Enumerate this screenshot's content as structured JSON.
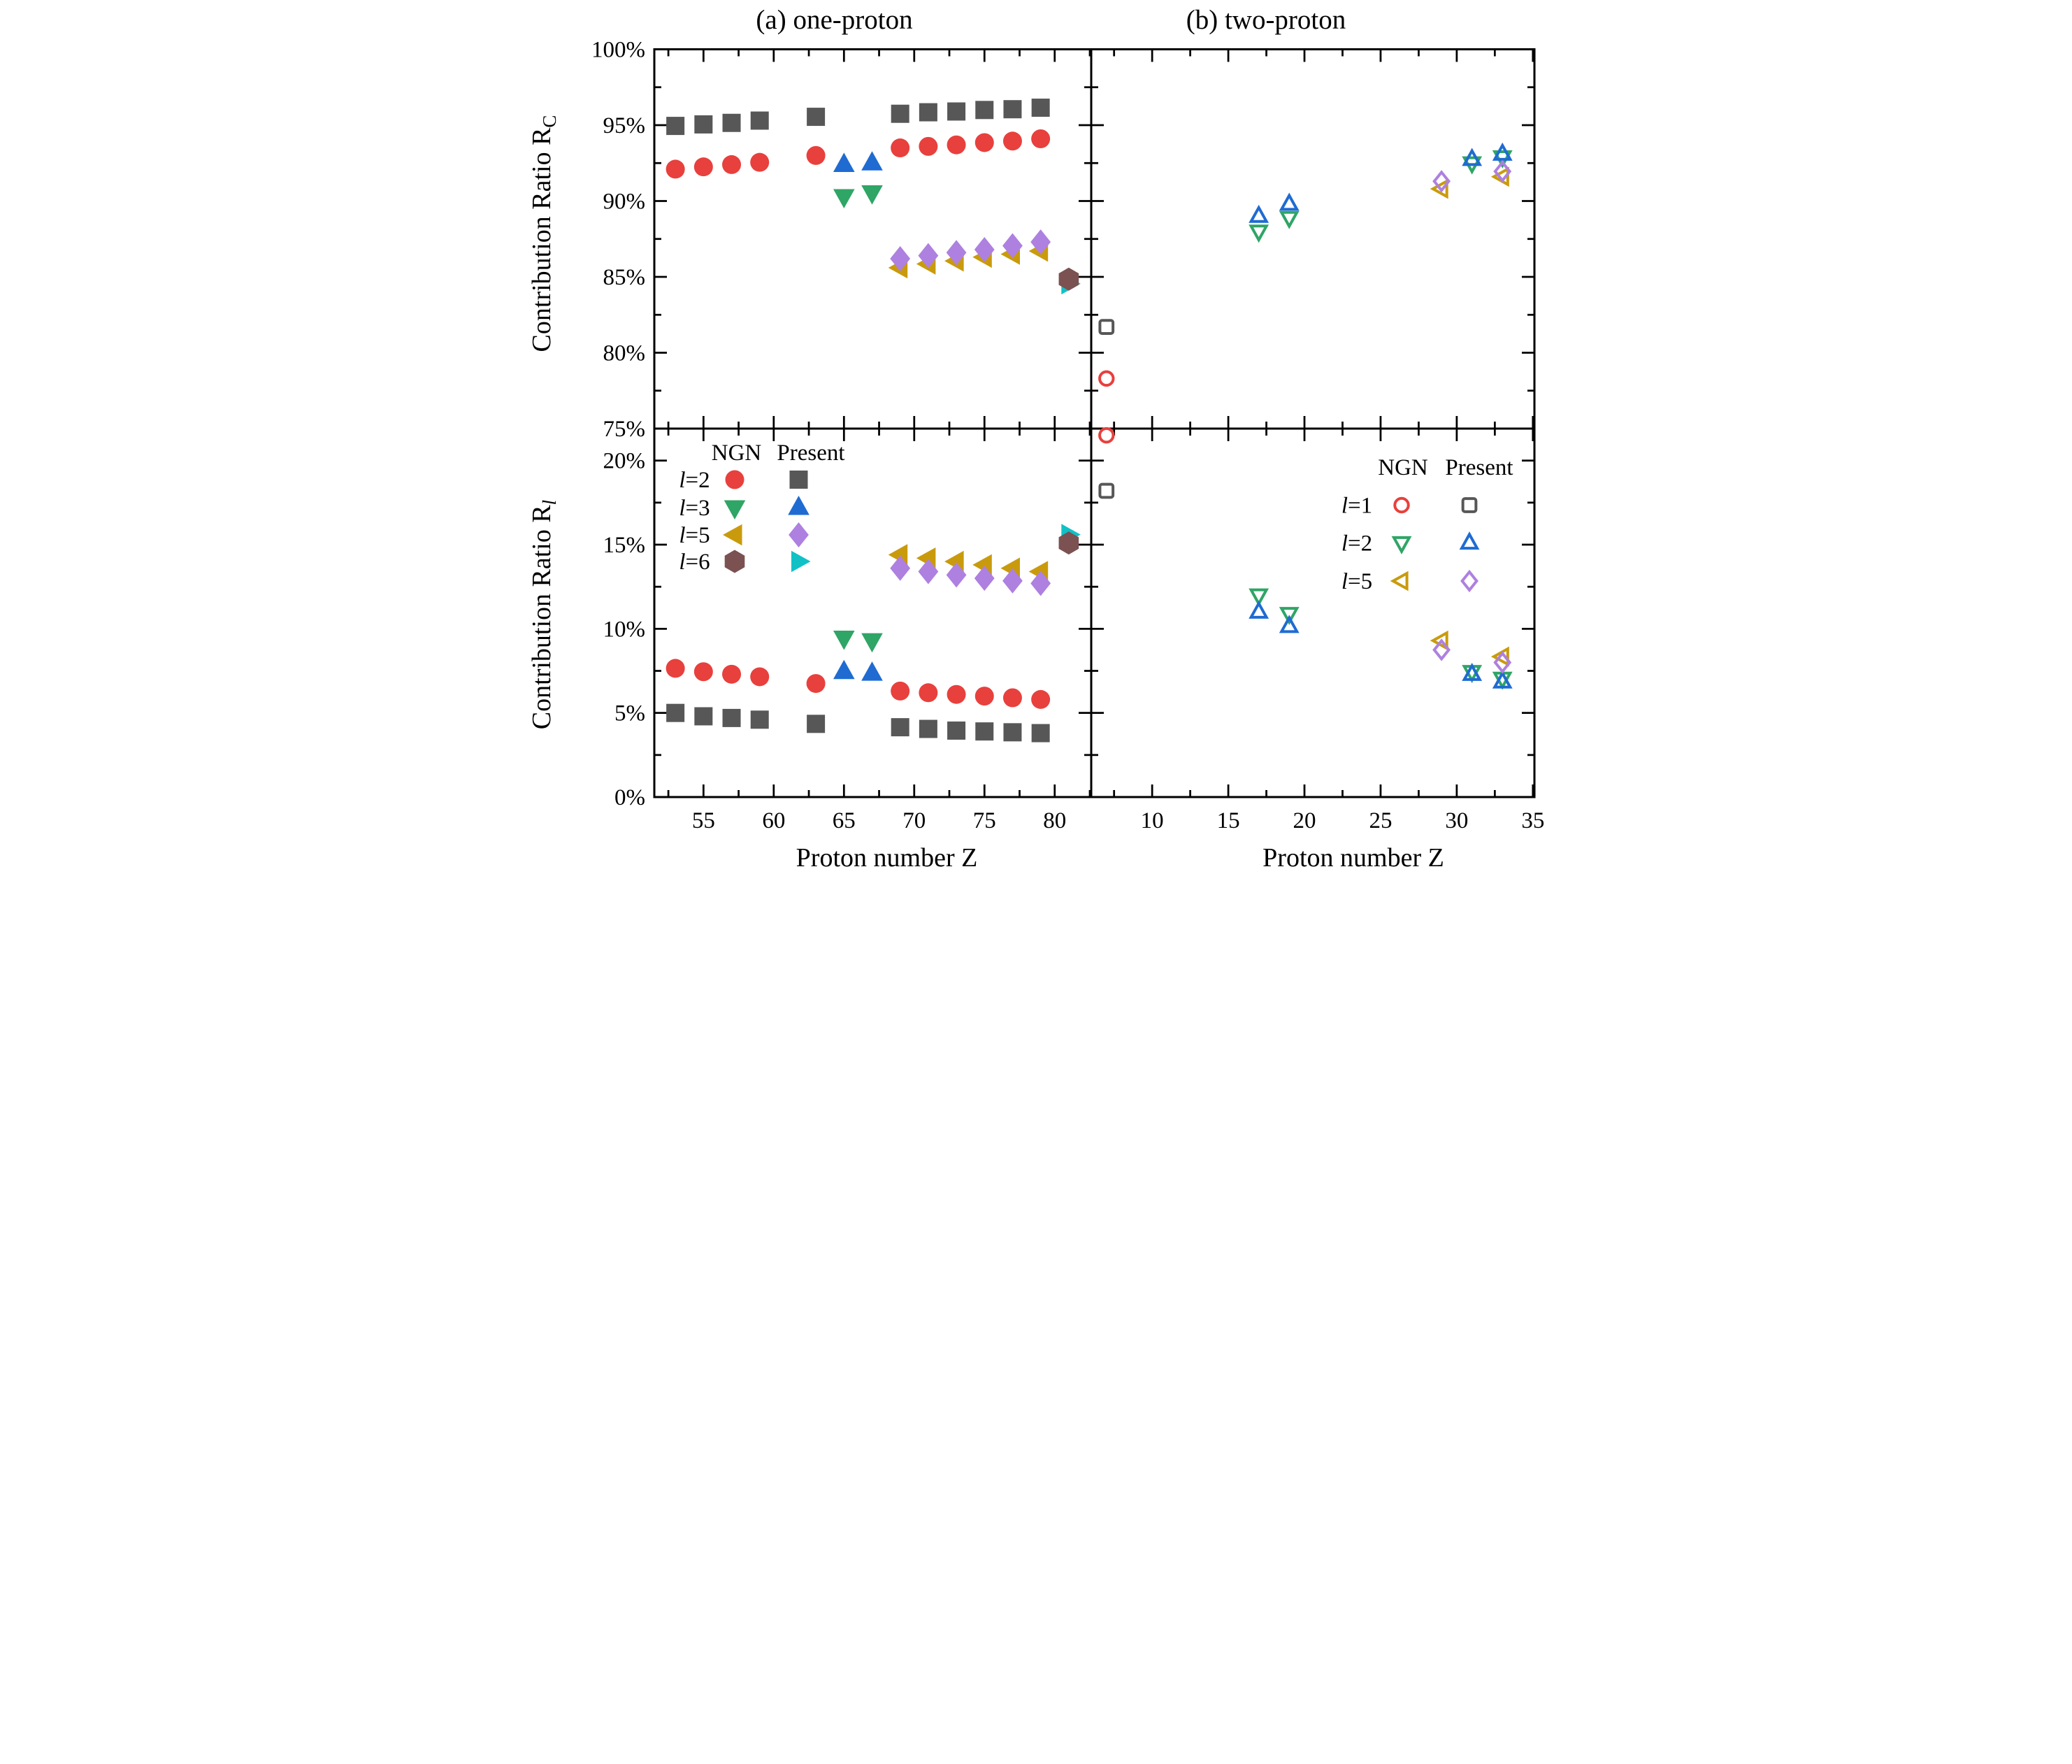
{
  "figure": {
    "background": "#ffffff",
    "panel_a_title": "(a) one-proton",
    "panel_b_title": "(b) two-proton",
    "x_axis_title": "Proton number Z",
    "y_axis_title_top": {
      "main": "Contribution Ratio R",
      "sub": "C",
      "sub_italic": false
    },
    "y_axis_title_bottom": {
      "main": "Contribution Ratio R",
      "sub": "l",
      "sub_italic": true
    }
  },
  "colors": {
    "red": "#e8403d",
    "grey": "#575757",
    "green": "#2fa566",
    "blue": "#1f6bd2",
    "gold": "#c99b0c",
    "purple": "#ae80e0",
    "brown": "#7b5151",
    "cyan": "#12c1c6",
    "axis": "#000000"
  },
  "chart_data": [
    {
      "id": "a-top",
      "type": "scatter",
      "title": "(a) one-proton",
      "xlabel": "Proton number Z",
      "ylabel": "Contribution Ratio R_C",
      "xlim": [
        51.5,
        82.6
      ],
      "ylim": [
        75,
        100
      ],
      "x_major_ticks": [
        55,
        60,
        65,
        70,
        75,
        80
      ],
      "x_minor_ticks": [
        52.5,
        57.5,
        62.5,
        67.5,
        72.5,
        77.5,
        82.5
      ],
      "y_major_ticks": [
        75,
        80,
        85,
        90,
        95,
        100
      ],
      "y_minor_ticks": [
        77.5,
        82.5,
        87.5,
        92.5,
        97.5
      ],
      "y_tick_labels": [
        "75%",
        "80%",
        "85%",
        "90%",
        "95%",
        "100%"
      ],
      "x_tick_labels": [],
      "grid": false,
      "series": [
        {
          "name": "l=2 NGN",
          "marker": "circle",
          "color": "red",
          "open": false,
          "points": [
            [
              53,
              92.1
            ],
            [
              55,
              92.25
            ],
            [
              57,
              92.4
            ],
            [
              59,
              92.55
            ],
            [
              63,
              93.0
            ],
            [
              69,
              93.5
            ],
            [
              71,
              93.6
            ],
            [
              73,
              93.7
            ],
            [
              75,
              93.85
            ],
            [
              77,
              93.95
            ],
            [
              79,
              94.1
            ]
          ]
        },
        {
          "name": "l=2 Present",
          "marker": "square",
          "color": "grey",
          "open": false,
          "points": [
            [
              53,
              94.95
            ],
            [
              55,
              95.05
            ],
            [
              57,
              95.15
            ],
            [
              59,
              95.3
            ],
            [
              63,
              95.55
            ],
            [
              69,
              95.75
            ],
            [
              71,
              95.85
            ],
            [
              73,
              95.9
            ],
            [
              75,
              96.0
            ],
            [
              77,
              96.05
            ],
            [
              79,
              96.15
            ]
          ]
        },
        {
          "name": "l=3 NGN",
          "marker": "triangle-down",
          "color": "green",
          "open": false,
          "points": [
            [
              65,
              90.3
            ],
            [
              67,
              90.55
            ]
          ]
        },
        {
          "name": "l=3 Present",
          "marker": "triangle-up",
          "color": "blue",
          "open": false,
          "points": [
            [
              65,
              92.4
            ],
            [
              67,
              92.5
            ]
          ]
        },
        {
          "name": "l=5 NGN",
          "marker": "triangle-left",
          "color": "gold",
          "open": false,
          "points": [
            [
              69,
              85.6
            ],
            [
              71,
              85.85
            ],
            [
              73,
              86.05
            ],
            [
              75,
              86.3
            ],
            [
              77,
              86.5
            ],
            [
              79,
              86.7
            ]
          ]
        },
        {
          "name": "l=5 Present",
          "marker": "diamond",
          "color": "purple",
          "open": false,
          "points": [
            [
              69,
              86.2
            ],
            [
              71,
              86.4
            ],
            [
              73,
              86.6
            ],
            [
              75,
              86.8
            ],
            [
              77,
              87.05
            ],
            [
              79,
              87.3
            ]
          ]
        },
        {
          "name": "l=6 Present",
          "marker": "triangle-right",
          "color": "cyan",
          "open": false,
          "points": [
            [
              81,
              84.55
            ]
          ]
        },
        {
          "name": "l=6 NGN",
          "marker": "hexagon",
          "color": "brown",
          "open": false,
          "points": [
            [
              81,
              84.85
            ]
          ]
        }
      ]
    },
    {
      "id": "a-bot",
      "type": "scatter",
      "title": "(a) one-proton",
      "xlabel": "Proton number Z",
      "ylabel": "Contribution Ratio R_l",
      "xlim": [
        51.5,
        82.6
      ],
      "ylim": [
        0,
        21.9
      ],
      "x_major_ticks": [
        55,
        60,
        65,
        70,
        75,
        80
      ],
      "x_minor_ticks": [
        52.5,
        57.5,
        62.5,
        67.5,
        72.5,
        77.5,
        82.5
      ],
      "y_major_ticks": [
        0,
        5,
        10,
        15,
        20
      ],
      "y_minor_ticks": [
        2.5,
        7.5,
        12.5,
        17.5
      ],
      "y_tick_labels": [
        "0%",
        "5%",
        "10%",
        "15%",
        "20%"
      ],
      "x_tick_labels": [
        "55",
        "60",
        "65",
        "70",
        "75",
        "80"
      ],
      "grid": false,
      "series": [
        {
          "name": "l=2 NGN",
          "marker": "circle",
          "color": "red",
          "open": false,
          "points": [
            [
              53,
              7.65
            ],
            [
              55,
              7.45
            ],
            [
              57,
              7.3
            ],
            [
              59,
              7.15
            ],
            [
              63,
              6.75
            ],
            [
              69,
              6.3
            ],
            [
              71,
              6.2
            ],
            [
              73,
              6.1
            ],
            [
              75,
              6.0
            ],
            [
              77,
              5.9
            ],
            [
              79,
              5.8
            ]
          ]
        },
        {
          "name": "l=2 Present",
          "marker": "square",
          "color": "grey",
          "open": false,
          "points": [
            [
              53,
              5.0
            ],
            [
              55,
              4.8
            ],
            [
              57,
              4.7
            ],
            [
              59,
              4.6
            ],
            [
              63,
              4.35
            ],
            [
              69,
              4.15
            ],
            [
              71,
              4.05
            ],
            [
              73,
              3.95
            ],
            [
              75,
              3.9
            ],
            [
              77,
              3.85
            ],
            [
              79,
              3.8
            ]
          ]
        },
        {
          "name": "l=3 NGN",
          "marker": "triangle-down",
          "color": "green",
          "open": false,
          "points": [
            [
              65,
              9.45
            ],
            [
              67,
              9.3
            ]
          ]
        },
        {
          "name": "l=3 Present",
          "marker": "triangle-up",
          "color": "blue",
          "open": false,
          "points": [
            [
              65,
              7.45
            ],
            [
              67,
              7.35
            ]
          ]
        },
        {
          "name": "l=5 NGN",
          "marker": "triangle-left",
          "color": "gold",
          "open": false,
          "points": [
            [
              69,
              14.4
            ],
            [
              71,
              14.2
            ],
            [
              73,
              14.0
            ],
            [
              75,
              13.8
            ],
            [
              77,
              13.6
            ],
            [
              79,
              13.4
            ]
          ]
        },
        {
          "name": "l=5 Present",
          "marker": "diamond",
          "color": "purple",
          "open": false,
          "points": [
            [
              69,
              13.6
            ],
            [
              71,
              13.4
            ],
            [
              73,
              13.2
            ],
            [
              75,
              13.0
            ],
            [
              77,
              12.85
            ],
            [
              79,
              12.7
            ]
          ]
        },
        {
          "name": "l=6 Present",
          "marker": "triangle-right",
          "color": "cyan",
          "open": false,
          "points": [
            [
              81,
              15.6
            ]
          ]
        },
        {
          "name": "l=6 NGN",
          "marker": "hexagon",
          "color": "brown",
          "open": false,
          "points": [
            [
              81,
              15.1
            ]
          ]
        }
      ]
    },
    {
      "id": "b-top",
      "type": "scatter",
      "title": "(b) two-proton",
      "xlabel": "Proton number Z",
      "ylabel": "Contribution Ratio R_C",
      "xlim": [
        6.0,
        35.1
      ],
      "ylim": [
        75,
        100
      ],
      "x_major_ticks": [
        10,
        15,
        20,
        25,
        30,
        35
      ],
      "x_minor_ticks": [
        7.5,
        12.5,
        17.5,
        22.5,
        27.5,
        32.5
      ],
      "y_major_ticks": [
        75,
        80,
        85,
        90,
        95,
        100
      ],
      "y_minor_ticks": [
        77.5,
        82.5,
        87.5,
        92.5,
        97.5
      ],
      "y_tick_labels": [],
      "x_tick_labels": [],
      "grid": false,
      "series": [
        {
          "name": "l=1 NGN",
          "marker": "circle",
          "color": "red",
          "open": true,
          "points": [
            [
              7,
              78.3
            ]
          ]
        },
        {
          "name": "l=1 Present",
          "marker": "square",
          "color": "grey",
          "open": true,
          "points": [
            [
              7,
              81.7
            ]
          ]
        },
        {
          "name": "l=2 NGN",
          "marker": "triangle-down",
          "color": "green",
          "open": true,
          "points": [
            [
              17,
              88.0
            ],
            [
              19,
              88.9
            ],
            [
              31,
              92.5
            ],
            [
              33,
              92.9
            ]
          ]
        },
        {
          "name": "l=2 Present",
          "marker": "triangle-up",
          "color": "blue",
          "open": true,
          "points": [
            [
              17,
              89.0
            ],
            [
              19,
              89.8
            ],
            [
              31,
              92.75
            ],
            [
              33,
              93.1
            ]
          ]
        },
        {
          "name": "l=5 NGN",
          "marker": "triangle-left",
          "color": "gold",
          "open": true,
          "points": [
            [
              29,
              90.8
            ],
            [
              33,
              91.6
            ]
          ]
        },
        {
          "name": "l=5 Present",
          "marker": "diamond",
          "color": "purple",
          "open": true,
          "points": [
            [
              29,
              91.3
            ],
            [
              33,
              91.95
            ]
          ]
        }
      ]
    },
    {
      "id": "b-bot",
      "type": "scatter",
      "title": "(b) two-proton",
      "xlabel": "Proton number Z",
      "ylabel": "Contribution Ratio R_l",
      "xlim": [
        6.0,
        35.1
      ],
      "ylim": [
        0,
        21.9
      ],
      "x_major_ticks": [
        10,
        15,
        20,
        25,
        30,
        35
      ],
      "x_minor_ticks": [
        7.5,
        12.5,
        17.5,
        22.5,
        27.5,
        32.5
      ],
      "y_major_ticks": [
        0,
        5,
        10,
        15,
        20
      ],
      "y_minor_ticks": [
        2.5,
        7.5,
        12.5,
        17.5
      ],
      "y_tick_labels": [],
      "x_tick_labels": [
        "10",
        "15",
        "20",
        "25",
        "30",
        "35"
      ],
      "grid": false,
      "series": [
        {
          "name": "l=1 NGN",
          "marker": "circle",
          "color": "red",
          "open": true,
          "points": [
            [
              7,
              21.5
            ]
          ]
        },
        {
          "name": "l=1 Present",
          "marker": "square",
          "color": "grey",
          "open": true,
          "points": [
            [
              7,
              18.2
            ]
          ]
        },
        {
          "name": "l=2 NGN",
          "marker": "triangle-down",
          "color": "green",
          "open": true,
          "points": [
            [
              17,
              12.0
            ],
            [
              19,
              10.9
            ],
            [
              31,
              7.45
            ],
            [
              33,
              7.05
            ]
          ]
        },
        {
          "name": "l=2 Present",
          "marker": "triangle-up",
          "color": "blue",
          "open": true,
          "points": [
            [
              17,
              11.0
            ],
            [
              19,
              10.15
            ],
            [
              31,
              7.3
            ],
            [
              33,
              6.85
            ]
          ]
        },
        {
          "name": "l=5 NGN",
          "marker": "triangle-left",
          "color": "gold",
          "open": true,
          "points": [
            [
              29,
              9.3
            ],
            [
              33,
              8.35
            ]
          ]
        },
        {
          "name": "l=5 Present",
          "marker": "diamond",
          "color": "purple",
          "open": true,
          "points": [
            [
              29,
              8.75
            ],
            [
              33,
              8.0
            ]
          ]
        }
      ]
    }
  ],
  "legends": [
    {
      "id": "one-proton",
      "header": [
        "NGN",
        "Present"
      ],
      "open_markers": false,
      "rows": [
        {
          "label": "l=2",
          "ngn_marker": "circle",
          "ngn_color": "red",
          "present_marker": "square",
          "present_color": "grey"
        },
        {
          "label": "l=3",
          "ngn_marker": "triangle-down",
          "ngn_color": "green",
          "present_marker": "triangle-up",
          "present_color": "blue"
        },
        {
          "label": "l=5",
          "ngn_marker": "triangle-left",
          "ngn_color": "gold",
          "present_marker": "diamond",
          "present_color": "purple"
        },
        {
          "label": "l=6",
          "ngn_marker": "hexagon",
          "ngn_color": "brown",
          "present_marker": "triangle-right",
          "present_color": "cyan"
        }
      ]
    },
    {
      "id": "two-proton",
      "header": [
        "NGN",
        "Present"
      ],
      "open_markers": true,
      "rows": [
        {
          "label": "l=1",
          "ngn_marker": "circle",
          "ngn_color": "red",
          "present_marker": "square",
          "present_color": "grey"
        },
        {
          "label": "l=2",
          "ngn_marker": "triangle-down",
          "ngn_color": "green",
          "present_marker": "triangle-up",
          "present_color": "blue"
        },
        {
          "label": "l=5",
          "ngn_marker": "triangle-left",
          "ngn_color": "gold",
          "present_marker": "diamond",
          "present_color": "purple"
        }
      ]
    }
  ]
}
